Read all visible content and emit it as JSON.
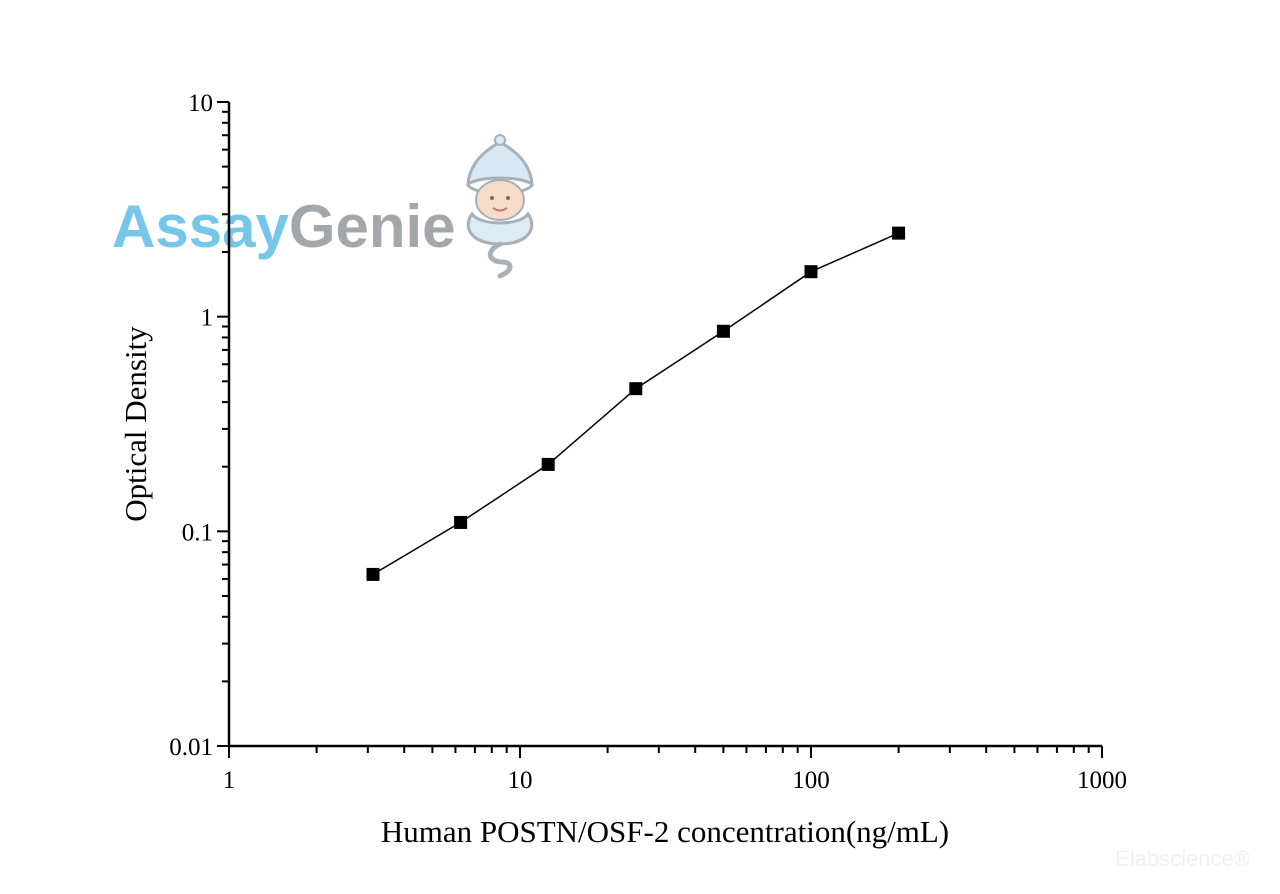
{
  "chart_data": {
    "type": "line",
    "xlabel": "Human POSTN/OSF-2 concentration(ng/mL)",
    "ylabel": "Optical Density",
    "x_scale": "log",
    "y_scale": "log",
    "xlim": [
      1,
      1000
    ],
    "ylim": [
      0.01,
      10
    ],
    "x_ticks": [
      "1",
      "10",
      "100",
      "1000"
    ],
    "y_ticks": [
      "0.01",
      "0.1",
      "1",
      "10"
    ],
    "grid": false,
    "marker": "square",
    "line_color": "#000000",
    "series": [
      {
        "x": [
          3.125,
          6.25,
          12.5,
          25,
          50,
          100,
          200
        ],
        "y": [
          0.063,
          0.11,
          0.205,
          0.462,
          0.855,
          1.62,
          2.45
        ]
      }
    ]
  },
  "logo": {
    "text_part1": "Assay",
    "text_part2": "Genie",
    "color_part1": "#76c6ea",
    "color_part2": "#a2a7ac",
    "icon": "genie-mascot-icon"
  },
  "watermark": {
    "text": "Elabscience®"
  }
}
